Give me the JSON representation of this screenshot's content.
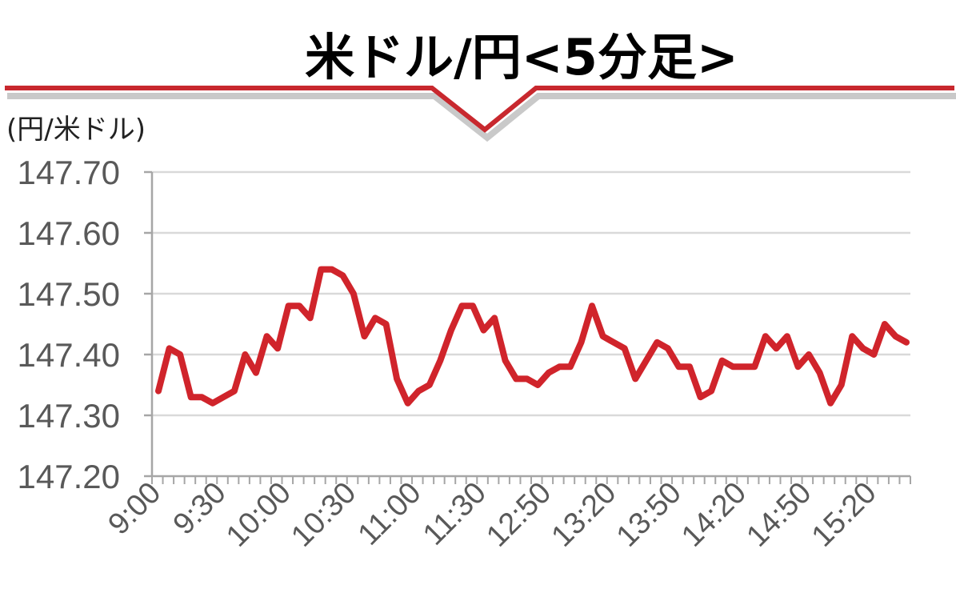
{
  "title": "米ドル/円<5分足>",
  "colors": {
    "line": "#d0242b",
    "banner": "#c8282e",
    "grid": "#d9d9d9",
    "axis": "#a6a6a6",
    "text": "#595959"
  },
  "chart_data": {
    "type": "line",
    "ylabel": "(円/米ドル)",
    "ylim": [
      147.2,
      147.7
    ],
    "yticks": [
      "147.70",
      "147.60",
      "147.50",
      "147.40",
      "147.30",
      "147.20"
    ],
    "xticks": [
      {
        "label": "9:00",
        "index": 0
      },
      {
        "label": "9:30",
        "index": 6
      },
      {
        "label": "10:00",
        "index": 12
      },
      {
        "label": "10:30",
        "index": 18
      },
      {
        "label": "11:00",
        "index": 24
      },
      {
        "label": "11:30",
        "index": 30
      },
      {
        "label": "12:50",
        "index": 36
      },
      {
        "label": "13:20",
        "index": 42
      },
      {
        "label": "13:50",
        "index": 48
      },
      {
        "label": "14:20",
        "index": 54
      },
      {
        "label": "14:50",
        "index": 60
      },
      {
        "label": "15:20",
        "index": 66
      }
    ],
    "grid": true,
    "series": [
      {
        "values": [
          147.34,
          147.41,
          147.4,
          147.33,
          147.33,
          147.32,
          147.33,
          147.34,
          147.4,
          147.37,
          147.43,
          147.41,
          147.48,
          147.48,
          147.46,
          147.54,
          147.54,
          147.53,
          147.5,
          147.43,
          147.46,
          147.45,
          147.36,
          147.32,
          147.34,
          147.35,
          147.39,
          147.44,
          147.48,
          147.48,
          147.44,
          147.46,
          147.39,
          147.36,
          147.36,
          147.35,
          147.37,
          147.38,
          147.38,
          147.42,
          147.48,
          147.43,
          147.42,
          147.41,
          147.36,
          147.39,
          147.42,
          147.41,
          147.38,
          147.38,
          147.33,
          147.34,
          147.39,
          147.38,
          147.38,
          147.38,
          147.43,
          147.41,
          147.43,
          147.38,
          147.4,
          147.37,
          147.32,
          147.35,
          147.43,
          147.41,
          147.4,
          147.45,
          147.43,
          147.42
        ]
      }
    ]
  }
}
